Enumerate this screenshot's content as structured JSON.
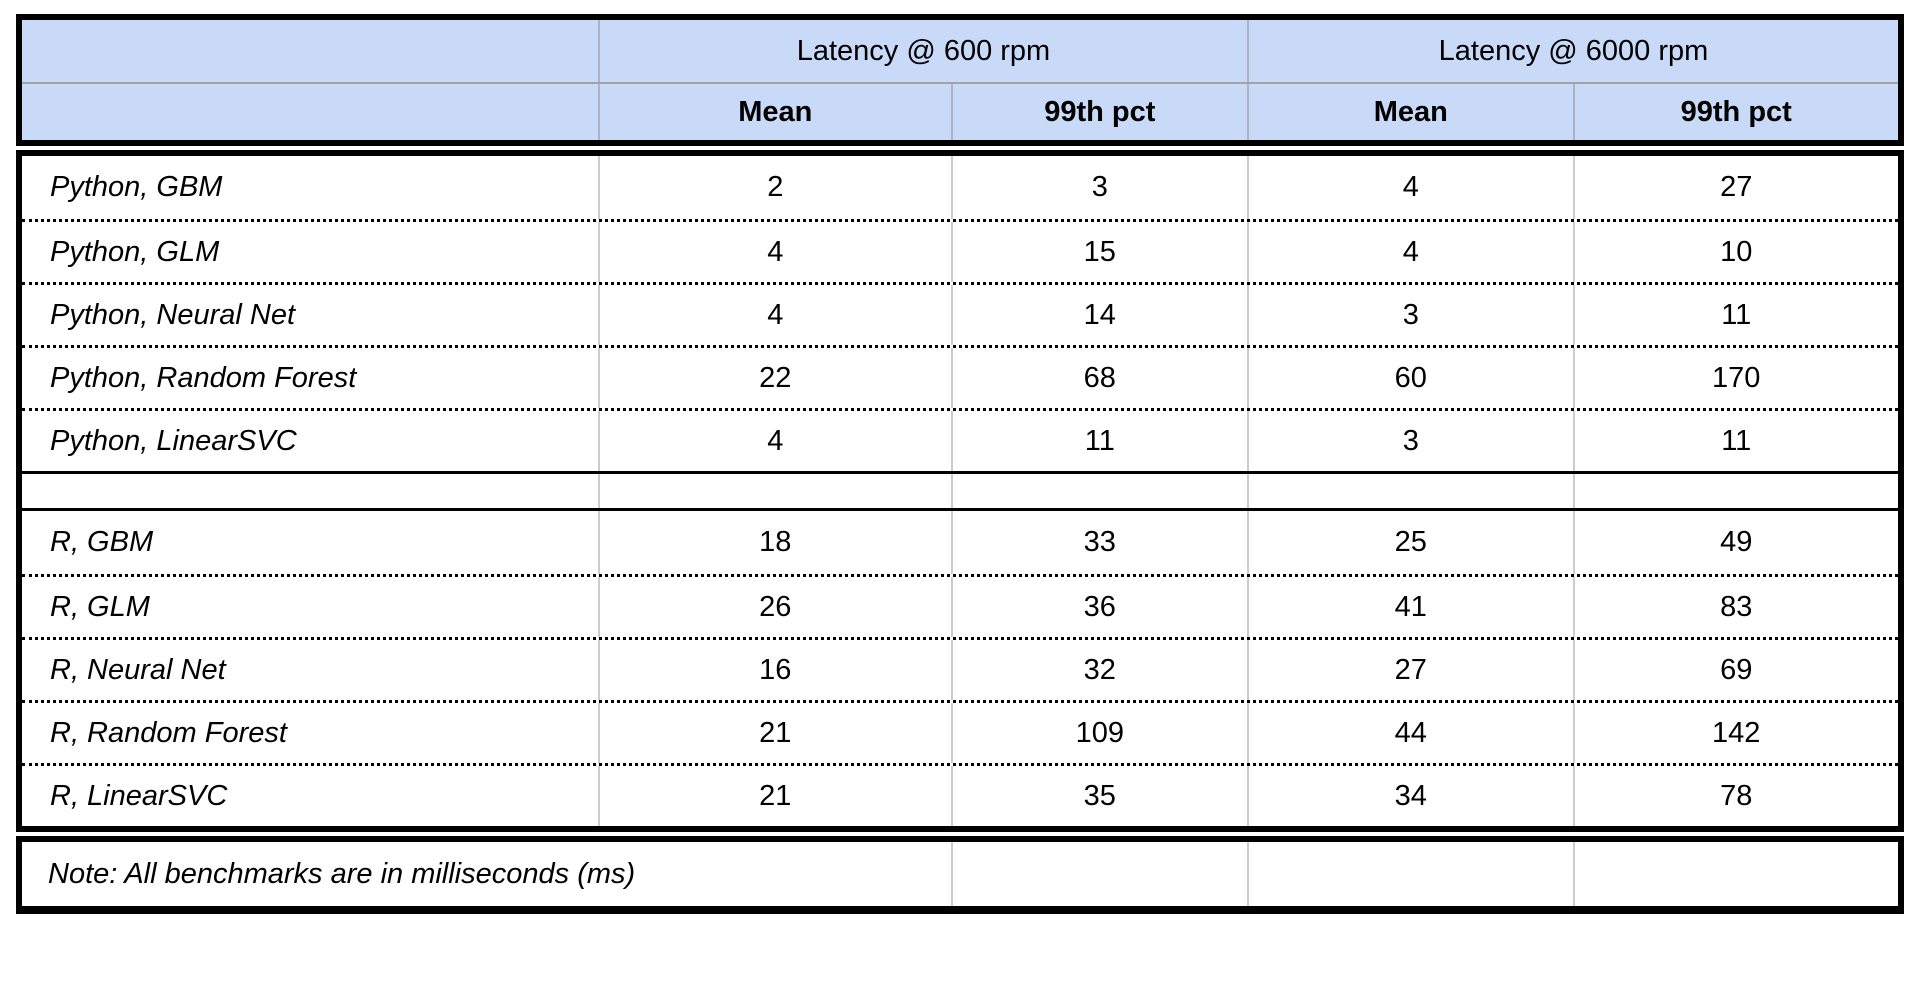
{
  "colors": {
    "header_bg": "#c9daf8",
    "outer_border": "#000000",
    "body_grid_vertical": "#cccccc",
    "header_grid_vertical": "#aab3c6"
  },
  "header": {
    "corner": "",
    "groups": [
      {
        "label": "Latency @ 600 rpm",
        "sub": [
          "Mean",
          "99th pct"
        ]
      },
      {
        "label": "Latency @ 6000 rpm",
        "sub": [
          "Mean",
          "99th pct"
        ]
      }
    ]
  },
  "note": "Note: All benchmarks are in milliseconds (ms)",
  "chart_data": {
    "type": "table",
    "title": "",
    "column_groups": [
      "Latency @ 600 rpm",
      "Latency @ 6000 rpm"
    ],
    "columns": [
      "",
      "Mean",
      "99th pct",
      "Mean",
      "99th pct"
    ],
    "units": "milliseconds (ms)",
    "row_groups": [
      [
        {
          "label": "Python, GBM",
          "values": [
            2,
            3,
            4,
            27
          ]
        },
        {
          "label": "Python, GLM",
          "values": [
            4,
            15,
            4,
            10
          ]
        },
        {
          "label": "Python, Neural Net",
          "values": [
            4,
            14,
            3,
            11
          ]
        },
        {
          "label": "Python, Random Forest",
          "values": [
            22,
            68,
            60,
            170
          ]
        },
        {
          "label": "Python, LinearSVC",
          "values": [
            4,
            11,
            3,
            11
          ]
        }
      ],
      [
        {
          "label": "R, GBM",
          "values": [
            18,
            33,
            25,
            49
          ]
        },
        {
          "label": "R, GLM",
          "values": [
            26,
            36,
            41,
            83
          ]
        },
        {
          "label": "R, Neural Net",
          "values": [
            16,
            32,
            27,
            69
          ]
        },
        {
          "label": "R, Random Forest",
          "values": [
            21,
            109,
            44,
            142
          ]
        },
        {
          "label": "R, LinearSVC",
          "values": [
            21,
            35,
            34,
            78
          ]
        }
      ]
    ],
    "note": "Note: All benchmarks are in milliseconds (ms)"
  }
}
